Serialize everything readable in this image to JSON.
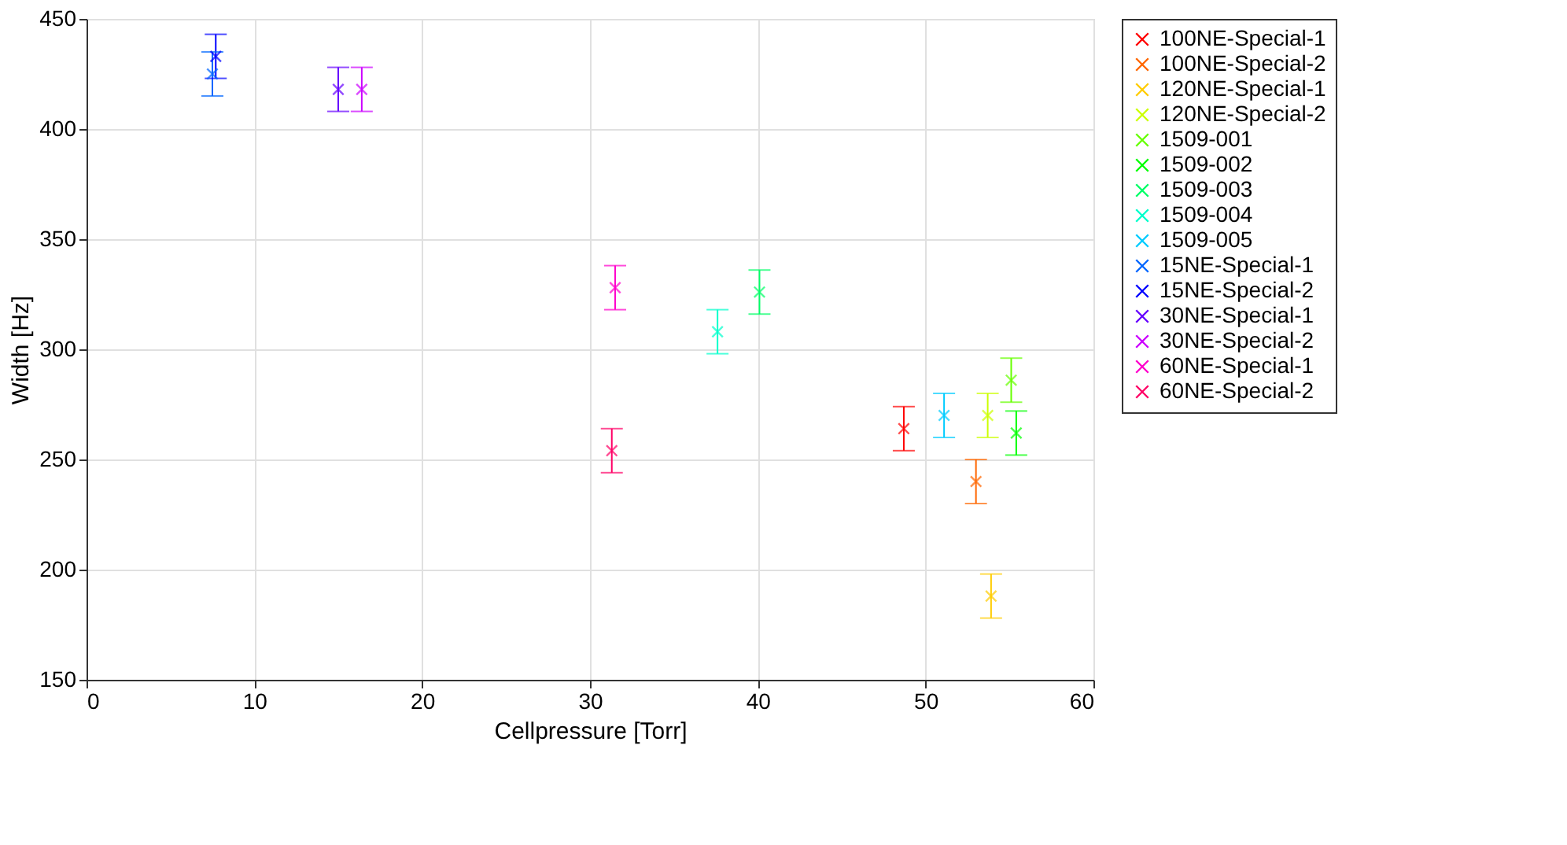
{
  "chart_data": {
    "type": "scatter",
    "xlabel": "Cellpressure [Torr]",
    "ylabel": "Width [Hz]",
    "xlim": [
      0,
      60
    ],
    "xticks": [
      0,
      10,
      20,
      30,
      40,
      50,
      60
    ],
    "ylim": [
      150,
      450
    ],
    "yticks": [
      150,
      200,
      250,
      300,
      350,
      400,
      450
    ],
    "grid": true,
    "legend": "top right",
    "marker": "cross",
    "series": [
      {
        "name": "100NE-Special-1",
        "color": "#ff0000",
        "x": [
          48.7
        ],
        "values": [
          264
        ],
        "errors": [
          10
        ]
      },
      {
        "name": "100NE-Special-2",
        "color": "#ff6600",
        "x": [
          53.0
        ],
        "values": [
          240
        ],
        "errors": [
          10
        ]
      },
      {
        "name": "120NE-Special-1",
        "color": "#ffcc00",
        "x": [
          53.9
        ],
        "values": [
          188
        ],
        "errors": [
          10
        ]
      },
      {
        "name": "120NE-Special-2",
        "color": "#ccff00",
        "x": [
          53.7
        ],
        "values": [
          270
        ],
        "errors": [
          10
        ]
      },
      {
        "name": "1509-001",
        "color": "#66ff00",
        "x": [
          55.1
        ],
        "values": [
          286
        ],
        "errors": [
          10
        ]
      },
      {
        "name": "1509-002",
        "color": "#00ff00",
        "x": [
          55.4
        ],
        "values": [
          262
        ],
        "errors": [
          10
        ]
      },
      {
        "name": "1509-003",
        "color": "#00ff66",
        "x": [
          40.1
        ],
        "values": [
          326
        ],
        "errors": [
          10
        ]
      },
      {
        "name": "1509-004",
        "color": "#00ffcc",
        "x": [
          37.6
        ],
        "values": [
          308
        ],
        "errors": [
          10
        ]
      },
      {
        "name": "1509-005",
        "color": "#00ccff",
        "x": [
          51.1
        ],
        "values": [
          270
        ],
        "errors": [
          10
        ]
      },
      {
        "name": "15NE-Special-1",
        "color": "#0066ff",
        "x": [
          7.5
        ],
        "values": [
          425
        ],
        "errors": [
          10
        ]
      },
      {
        "name": "15NE-Special-2",
        "color": "#0000ff",
        "x": [
          7.7
        ],
        "values": [
          433
        ],
        "errors": [
          10
        ]
      },
      {
        "name": "30NE-Special-1",
        "color": "#6600ff",
        "x": [
          15.0
        ],
        "values": [
          418
        ],
        "errors": [
          10
        ]
      },
      {
        "name": "30NE-Special-2",
        "color": "#cc00ff",
        "x": [
          16.4
        ],
        "values": [
          418
        ],
        "errors": [
          10
        ]
      },
      {
        "name": "60NE-Special-1",
        "color": "#ff00cc",
        "x": [
          31.5
        ],
        "values": [
          328
        ],
        "errors": [
          10
        ]
      },
      {
        "name": "60NE-Special-2",
        "color": "#ff0066",
        "x": [
          31.3
        ],
        "values": [
          254
        ],
        "errors": [
          10
        ]
      }
    ]
  }
}
